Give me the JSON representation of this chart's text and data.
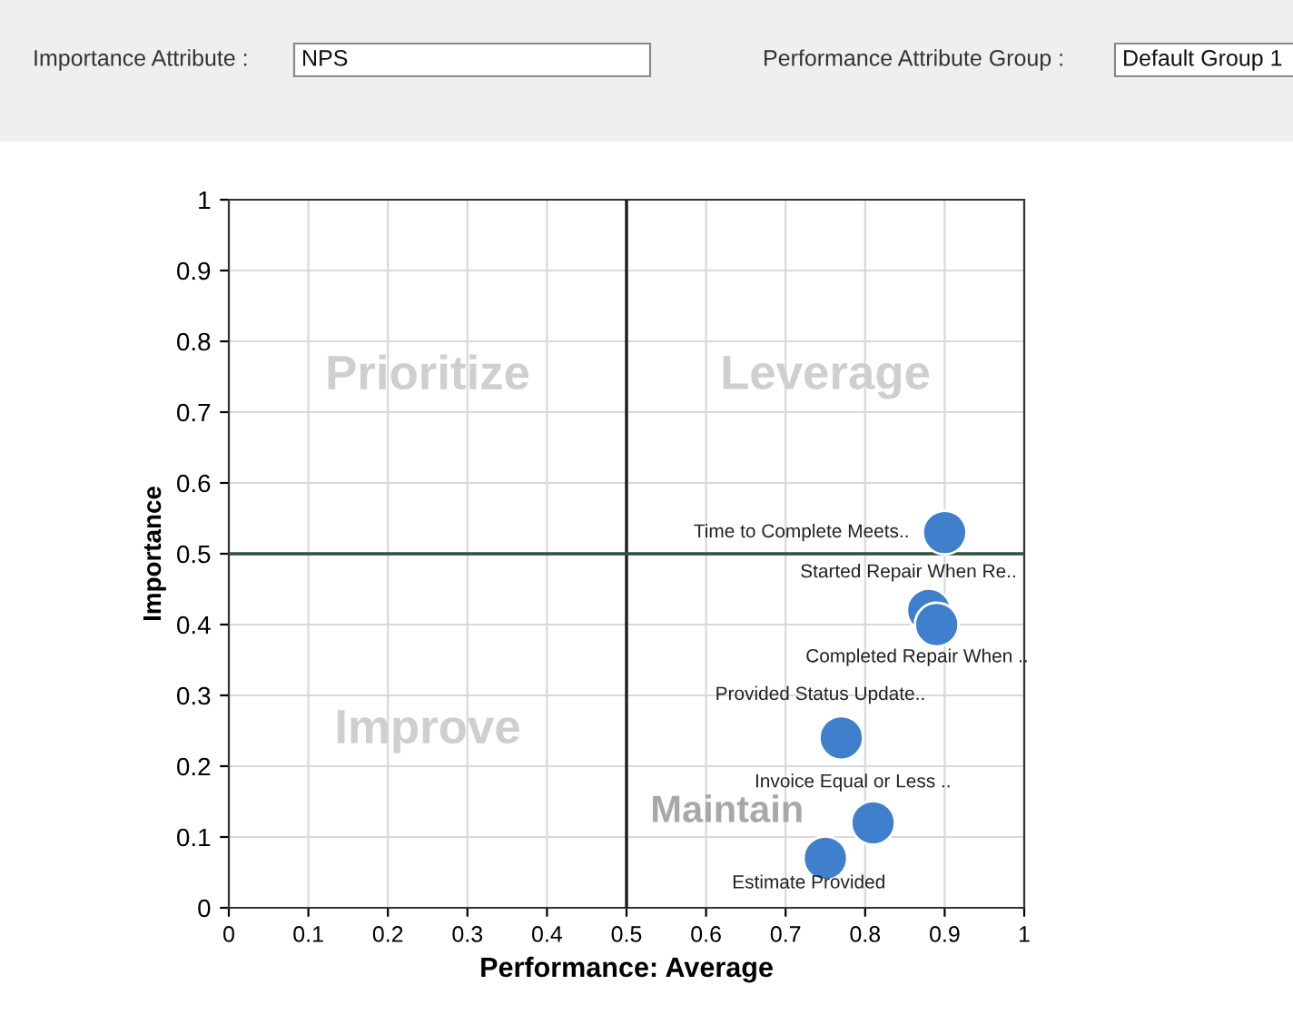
{
  "chart_data": {
    "type": "scatter",
    "xlabel": "Performance: Average",
    "ylabel": "Importance",
    "x": [
      0.9,
      0.88,
      0.89,
      0.77,
      0.81,
      0.75
    ],
    "values": [
      0.53,
      0.42,
      0.4,
      0.24,
      0.12,
      0.07
    ],
    "color": "#3f7fcb",
    "marker": "circle",
    "xlim": [
      0,
      1
    ],
    "ylim": [
      0,
      1
    ],
    "xticks": [
      0,
      0.1,
      0.2,
      0.3,
      0.4,
      0.5,
      0.6,
      0.7,
      0.8,
      0.9,
      1
    ],
    "yticks": [
      0,
      0.1,
      0.2,
      0.3,
      0.4,
      0.5,
      0.6,
      0.7,
      0.8,
      0.9,
      1
    ],
    "grid": true,
    "ref_lines": [
      {
        "axis": "x",
        "value": 0.5,
        "color": "#1a1a1a"
      },
      {
        "axis": "y",
        "value": 0.5,
        "color": "#2e4f3e"
      }
    ],
    "annotations": [
      "Importance Attribute :",
      "NPS",
      "Performance Attribute Group :",
      "Default Group 1",
      "Prioritize",
      "Leverage",
      "Improve",
      "Maintain",
      {
        "text": "Time to Complete Meets..",
        "x": 0.9,
        "y": 0.53
      },
      {
        "text": "Started Repair When Re..",
        "x": 0.88,
        "y": 0.42
      },
      {
        "text": "Completed Repair When ..",
        "x": 0.89,
        "y": 0.4
      },
      {
        "text": "Provided Status Update..",
        "x": 0.77,
        "y": 0.24
      },
      {
        "text": "Invoice Equal or Less ..",
        "x": 0.81,
        "y": 0.12
      },
      {
        "text": "Estimate Provided",
        "x": 0.75,
        "y": 0.07
      }
    ]
  }
}
